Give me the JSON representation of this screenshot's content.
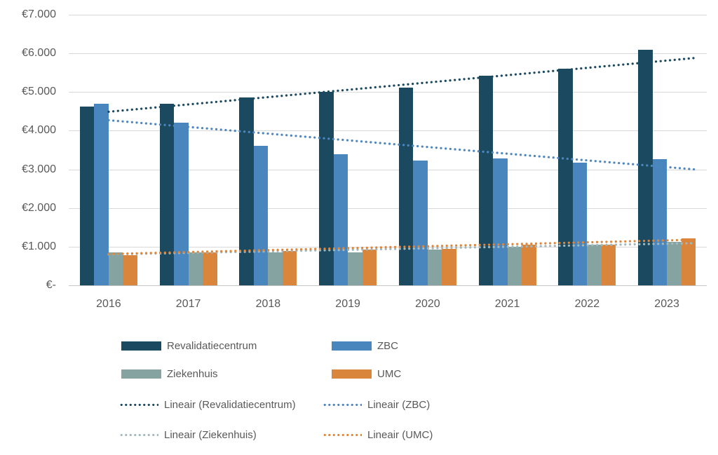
{
  "chart_data": {
    "type": "bar",
    "title": "",
    "categories": [
      "2016",
      "2017",
      "2018",
      "2019",
      "2020",
      "2021",
      "2022",
      "2023"
    ],
    "series": [
      {
        "name": "Revalidatiecentrum",
        "color": "#1b4a60",
        "values": [
          4630,
          4690,
          4870,
          5010,
          5110,
          5420,
          5600,
          6100
        ]
      },
      {
        "name": "ZBC",
        "color": "#4a86be",
        "values": [
          4690,
          4210,
          3610,
          3400,
          3230,
          3290,
          3180,
          3270
        ]
      },
      {
        "name": "Ziekenhuis",
        "color": "#85a3a1",
        "values": [
          850,
          850,
          850,
          860,
          930,
          990,
          1060,
          1130
        ]
      },
      {
        "name": "UMC",
        "color": "#d9853c",
        "values": [
          780,
          860,
          890,
          920,
          950,
          1050,
          1050,
          1220
        ]
      }
    ],
    "trendlines": [
      {
        "name": "Lineair (Ziekenhuis)",
        "color": "#a3b8bb",
        "start": 800,
        "end": 1090
      },
      {
        "name": "Lineair (UMC)",
        "color": "#e0863b",
        "start": 810,
        "end": 1180
      },
      {
        "name": "Lineair (ZBC)",
        "color": "#4e87c0",
        "start": 4270,
        "end": 3000
      },
      {
        "name": "Lineair (Revalidatiecentrum)",
        "color": "#1b4a60",
        "start": 4490,
        "end": 5880
      }
    ],
    "y_axis": {
      "min": 0,
      "max": 7000,
      "step": 1000,
      "tick_labels": [
        "€-",
        "€1.000",
        "€2.000",
        "€3.000",
        "€4.000",
        "€5.000",
        "€6.000",
        "€7.000"
      ]
    },
    "xlabel": "",
    "ylabel": "",
    "grid": true,
    "legend_position": "bottom"
  },
  "legend": {
    "items": [
      {
        "label": "Revalidatiecentrum",
        "color": "#1b4a60",
        "style": "solid"
      },
      {
        "label": "ZBC",
        "color": "#4a86be",
        "style": "solid"
      },
      {
        "label": "Ziekenhuis",
        "color": "#85a3a1",
        "style": "solid"
      },
      {
        "label": "UMC",
        "color": "#d9853c",
        "style": "solid"
      },
      {
        "label": "Lineair (Revalidatiecentrum)",
        "color": "#1b4a60",
        "style": "dotted"
      },
      {
        "label": "Lineair (ZBC)",
        "color": "#4e87c0",
        "style": "dotted"
      },
      {
        "label": "Lineair (Ziekenhuis)",
        "color": "#a3b8bb",
        "style": "dotted"
      },
      {
        "label": "Lineair (UMC)",
        "color": "#e0863b",
        "style": "dotted"
      }
    ]
  },
  "colors": {
    "axis_text": "#595959",
    "gridline": "#d9d9d9",
    "background": "#ffffff"
  }
}
